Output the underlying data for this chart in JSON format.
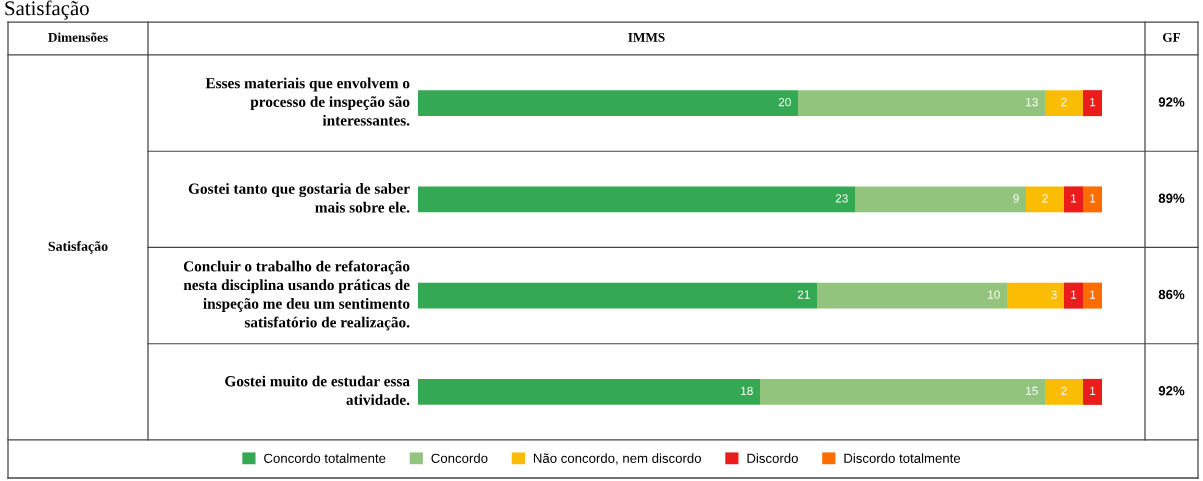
{
  "chart_data": {
    "type": "bar",
    "orientation": "horizontal",
    "stacked": true,
    "data_labels": true,
    "legend": "bottom",
    "title": "Satisfação",
    "categories": [
      "Esses materiais que envolvem o processo de inspeção são interessantes.",
      "Gostei tanto que gostaria de saber mais sobre ele.",
      "Concluir o trabalho de refatoração nesta disciplina usando práticas de inspeção me deu um sentimento satisfatório de realização.",
      "Gostei muito de estudar essa atividade."
    ],
    "series": [
      {
        "name": "Concordo totalmente",
        "color": "#34a853",
        "values": [
          20,
          23,
          21,
          18
        ]
      },
      {
        "name": "Concordo",
        "color": "#93c47d",
        "values": [
          13,
          9,
          10,
          15
        ]
      },
      {
        "name": "Não concordo, nem discordo",
        "color": "#fbbc04",
        "values": [
          2,
          2,
          3,
          2
        ]
      },
      {
        "name": "Discordo",
        "color": "#ea1c1c",
        "values": [
          1,
          1,
          1,
          1
        ]
      },
      {
        "name": "Discordo totalmente",
        "color": "#ff6d01",
        "values": [
          null,
          1,
          1,
          null
        ]
      }
    ],
    "annotations": [
      "Dimensões",
      "IMMS",
      "GF",
      "Satisfação",
      "92%",
      "89%",
      "86%",
      "92%"
    ]
  }
}
